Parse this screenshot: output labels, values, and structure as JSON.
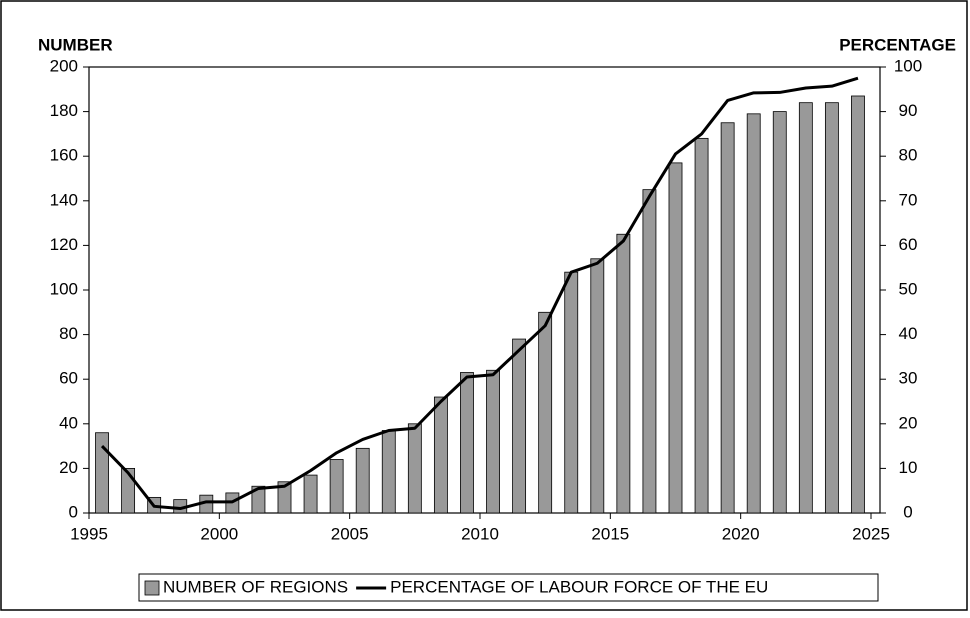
{
  "chart_data": {
    "type": "bar",
    "y_label": "NUMBER",
    "y2_label": "PERCENTAGE",
    "x": [
      1995.5,
      1996.5,
      1997.5,
      1998.5,
      1999.5,
      2000.5,
      2001.5,
      2002.5,
      2003.5,
      2004.5,
      2005.5,
      2006.5,
      2007.5,
      2008.5,
      2009.5,
      2010.5,
      2011.5,
      2012.5,
      2013.5,
      2014.5,
      2015.5,
      2016.5,
      2017.5,
      2018.5,
      2019.5,
      2020.5,
      2021.5,
      2022.5,
      2023.5,
      2024.5
    ],
    "series": [
      {
        "name": "NUMBER OF REGIONS",
        "type": "bar",
        "color": "#999999",
        "values": [
          36,
          20,
          7,
          6,
          8,
          9,
          12,
          14,
          17,
          24,
          29,
          37,
          40,
          52,
          63,
          64,
          78,
          90,
          108,
          114,
          125,
          145,
          157,
          168,
          175,
          179,
          180,
          184,
          184,
          187
        ]
      },
      {
        "name": "PERCENTAGE OF LABOUR FORCE OF THE EU",
        "type": "line",
        "color": "#000000",
        "axis": "y2",
        "values": [
          15,
          9,
          1.5,
          1,
          2.5,
          2.5,
          5.5,
          6,
          9.5,
          13.5,
          16.5,
          18.5,
          19,
          25,
          30.5,
          31,
          36.5,
          42,
          54,
          56,
          61,
          71,
          80.5,
          85,
          92.5,
          94.2,
          94.3,
          95.3,
          95.7,
          97.5
        ]
      }
    ],
    "xlim": [
      1995,
      2025
    ],
    "xticks": [
      1995,
      2000,
      2005,
      2010,
      2015,
      2020,
      2025
    ],
    "ylim": [
      0,
      200
    ],
    "yticks": [
      0,
      20,
      40,
      60,
      80,
      100,
      120,
      140,
      160,
      180,
      200
    ],
    "y2lim": [
      0,
      100
    ],
    "y2ticks": [
      0,
      10,
      20,
      30,
      40,
      50,
      60,
      70,
      80,
      90,
      100
    ],
    "legend": "bottom"
  }
}
